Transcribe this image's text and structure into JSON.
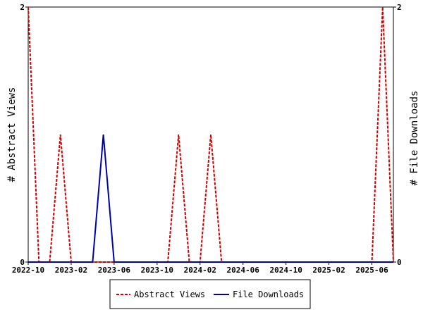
{
  "chart_data": {
    "type": "line",
    "xlabel": "",
    "ylabel_left": "# Abstract Views",
    "ylabel_right": "# File Downloads",
    "ylim_left": [
      0,
      2
    ],
    "ylim_right": [
      0,
      2
    ],
    "y_ticks_left": [
      "0",
      "2"
    ],
    "y_ticks_right": [
      "0",
      "2"
    ],
    "x_ticks": [
      "2022-10",
      "2023-02",
      "2023-06",
      "2023-10",
      "2024-02",
      "2024-06",
      "2024-10",
      "2025-02",
      "2025-06"
    ],
    "x": [
      "2022-10",
      "2022-11",
      "2022-12",
      "2023-01",
      "2023-02",
      "2023-03",
      "2023-04",
      "2023-05",
      "2023-06",
      "2023-07",
      "2023-08",
      "2023-09",
      "2023-10",
      "2023-11",
      "2023-12",
      "2024-01",
      "2024-02",
      "2024-03",
      "2024-04",
      "2024-05",
      "2024-06",
      "2024-07",
      "2024-08",
      "2024-09",
      "2024-10",
      "2024-11",
      "2024-12",
      "2025-01",
      "2025-02",
      "2025-03",
      "2025-04",
      "2025-05",
      "2025-06",
      "2025-07",
      "2025-08"
    ],
    "series": [
      {
        "name": "Abstract Views",
        "color": "#cc0000",
        "style": "dashed",
        "values": [
          2,
          0,
          0,
          1,
          0,
          0,
          0,
          0,
          0,
          0,
          0,
          0,
          0,
          0,
          1,
          0,
          0,
          1,
          0,
          0,
          0,
          0,
          0,
          0,
          0,
          0,
          0,
          0,
          0,
          0,
          0,
          0,
          0,
          2,
          0
        ]
      },
      {
        "name": "File Downloads",
        "color": "#0000aa",
        "style": "solid",
        "values": [
          0,
          0,
          0,
          0,
          0,
          0,
          0,
          1,
          0,
          0,
          0,
          0,
          0,
          0,
          0,
          0,
          0,
          0,
          0,
          0,
          0,
          0,
          0,
          0,
          0,
          0,
          0,
          0,
          0,
          0,
          0,
          0,
          0,
          0,
          0
        ]
      }
    ],
    "grid": false,
    "legend_position": "bottom"
  }
}
